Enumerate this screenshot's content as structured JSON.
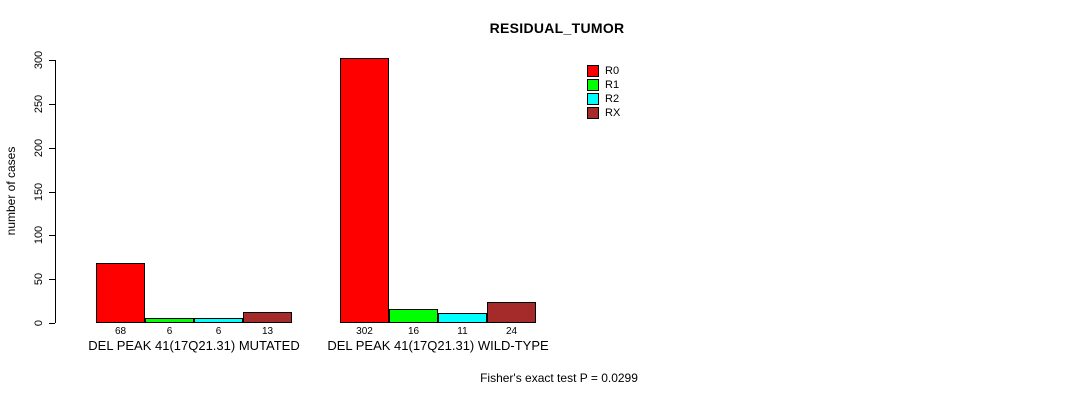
{
  "title": "RESIDUAL_TUMOR",
  "footer": "Fisher's exact test P = 0.0299",
  "chart_data": {
    "type": "bar",
    "title": "RESIDUAL_TUMOR",
    "xlabel": "",
    "ylabel": "number of cases",
    "ylim": [
      0,
      300
    ],
    "yticks": [
      0,
      50,
      100,
      150,
      200,
      250,
      300
    ],
    "grid": false,
    "legend_position": "top-right",
    "categories": [
      "DEL PEAK 41(17Q21.31) MUTATED",
      "DEL PEAK 41(17Q21.31) WILD-TYPE"
    ],
    "series": [
      {
        "name": "R0",
        "color": "#FF0000",
        "values": [
          68,
          302
        ]
      },
      {
        "name": "R1",
        "color": "#00FF00",
        "values": [
          6,
          16
        ]
      },
      {
        "name": "R2",
        "color": "#00FFFF",
        "values": [
          6,
          11
        ]
      },
      {
        "name": "RX",
        "color": "#A52A2A",
        "values": [
          13,
          24
        ]
      }
    ],
    "bar_value_labels": [
      [
        68,
        6,
        6,
        13
      ],
      [
        302,
        16,
        11,
        24
      ]
    ],
    "annotation": "Fisher's exact test P = 0.0299"
  }
}
